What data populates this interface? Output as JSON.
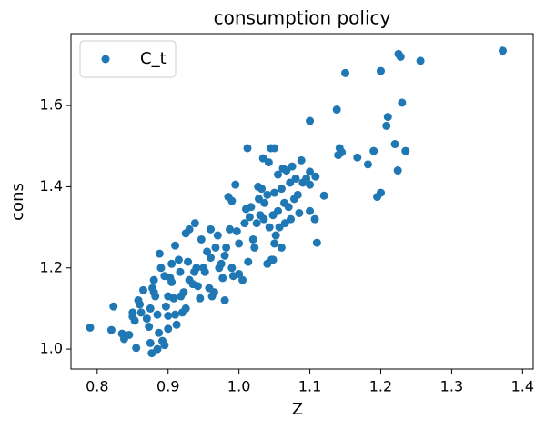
{
  "chart_data": {
    "type": "scatter",
    "title": "consumption policy",
    "x_label": "Z",
    "y_label": "cons",
    "xlim": [
      0.763,
      1.415
    ],
    "ylim": [
      0.951,
      1.777
    ],
    "xticks": [
      0.8,
      0.9,
      {
        "value": 1.0,
        "label": "1.0"
      },
      1.1,
      1.2,
      1.3,
      1.4
    ],
    "yticks": [
      {
        "value": 1.0,
        "label": "1.0"
      },
      1.2,
      1.4,
      1.6
    ],
    "legend": "upper left",
    "series": [
      {
        "name": "C_t",
        "color": "#1f77b4",
        "x": [
          0.79,
          1.372,
          1.225,
          1.228,
          1.256,
          1.2,
          1.15,
          1.23,
          1.138,
          1.1,
          1.21,
          1.208,
          1.142,
          1.145,
          1.14,
          1.167,
          1.19,
          1.22,
          1.235,
          1.182,
          1.224,
          1.2,
          1.195,
          1.12,
          1.11,
          1.107,
          1.108,
          1.1,
          1.1,
          0.82,
          0.823,
          0.835,
          0.838,
          0.845,
          0.85,
          0.85,
          0.853,
          0.855,
          0.858,
          0.862,
          0.865,
          0.87,
          0.873,
          0.875,
          0.877,
          0.88,
          0.878,
          0.88,
          0.882,
          0.885,
          0.885,
          0.887,
          0.888,
          0.89,
          0.892,
          0.895,
          0.895,
          0.897,
          0.9,
          0.903,
          0.905,
          0.905,
          0.908,
          0.91,
          0.91,
          0.912,
          0.915,
          0.917,
          0.918,
          0.92,
          0.922,
          0.925,
          0.925,
          0.928,
          0.93,
          0.93,
          0.935,
          0.937,
          0.938,
          0.94,
          0.942,
          0.945,
          0.947,
          0.95,
          0.952,
          0.955,
          0.958,
          0.96,
          0.96,
          0.962,
          0.965,
          0.967,
          0.97,
          0.972,
          0.975,
          0.977,
          0.98,
          0.982,
          0.985,
          0.987,
          0.99,
          0.99,
          0.992,
          0.995,
          0.997,
          1.0,
          1.0,
          1.005,
          1.008,
          1.01,
          1.012,
          1.013,
          1.015,
          1.017,
          1.02,
          1.022,
          1.025,
          1.027,
          1.028,
          1.03,
          1.032,
          1.034,
          1.035,
          1.036,
          1.04,
          1.04,
          1.042,
          1.043,
          1.045,
          1.046,
          1.048,
          1.05,
          1.05,
          1.052,
          1.055,
          1.057,
          1.06,
          1.06,
          1.062,
          1.064,
          1.065,
          1.067,
          1.07,
          1.072,
          1.073,
          1.075,
          1.078,
          1.08,
          1.083,
          1.085,
          1.088,
          1.09,
          1.095,
          1.1,
          1.05,
          1.055,
          1.048,
          0.98,
          0.9,
          0.86,
          0.875,
          0.9
        ],
        "values": [
          1.053,
          1.735,
          1.727,
          1.72,
          1.71,
          1.685,
          1.68,
          1.607,
          1.59,
          1.562,
          1.572,
          1.55,
          1.495,
          1.485,
          1.478,
          1.472,
          1.488,
          1.505,
          1.488,
          1.455,
          1.44,
          1.385,
          1.375,
          1.378,
          1.262,
          1.32,
          1.425,
          1.405,
          1.437,
          1.047,
          1.105,
          1.038,
          1.025,
          1.035,
          1.08,
          1.09,
          1.07,
          1.003,
          1.12,
          1.09,
          1.145,
          1.075,
          1.055,
          1.015,
          0.99,
          1.17,
          1.15,
          1.14,
          1.13,
          1.085,
          1.0,
          1.04,
          1.235,
          1.2,
          1.02,
          1.01,
          1.18,
          1.105,
          1.082,
          1.175,
          1.165,
          1.21,
          1.125,
          1.255,
          1.085,
          1.06,
          1.22,
          1.19,
          1.13,
          1.09,
          1.14,
          1.285,
          1.1,
          1.215,
          1.295,
          1.17,
          1.16,
          1.19,
          1.31,
          1.2,
          1.155,
          1.125,
          1.27,
          1.2,
          1.19,
          1.24,
          1.15,
          1.225,
          1.295,
          1.13,
          1.14,
          1.25,
          1.28,
          1.2,
          1.21,
          1.175,
          1.23,
          1.25,
          1.375,
          1.295,
          1.365,
          1.2,
          1.18,
          1.405,
          1.29,
          1.26,
          1.185,
          1.17,
          1.31,
          1.345,
          1.495,
          1.215,
          1.325,
          1.35,
          1.27,
          1.25,
          1.31,
          1.4,
          1.37,
          1.33,
          1.395,
          1.47,
          1.32,
          1.36,
          1.38,
          1.21,
          1.46,
          1.3,
          1.495,
          1.22,
          1.33,
          1.385,
          1.495,
          1.28,
          1.43,
          1.3,
          1.25,
          1.395,
          1.445,
          1.36,
          1.31,
          1.44,
          1.35,
          1.41,
          1.32,
          1.45,
          1.37,
          1.42,
          1.38,
          1.335,
          1.465,
          1.41,
          1.42,
          1.34,
          1.26,
          1.34,
          1.22,
          1.12,
          1.13,
          1.11,
          1.1,
          1.05
        ]
      }
    ]
  }
}
